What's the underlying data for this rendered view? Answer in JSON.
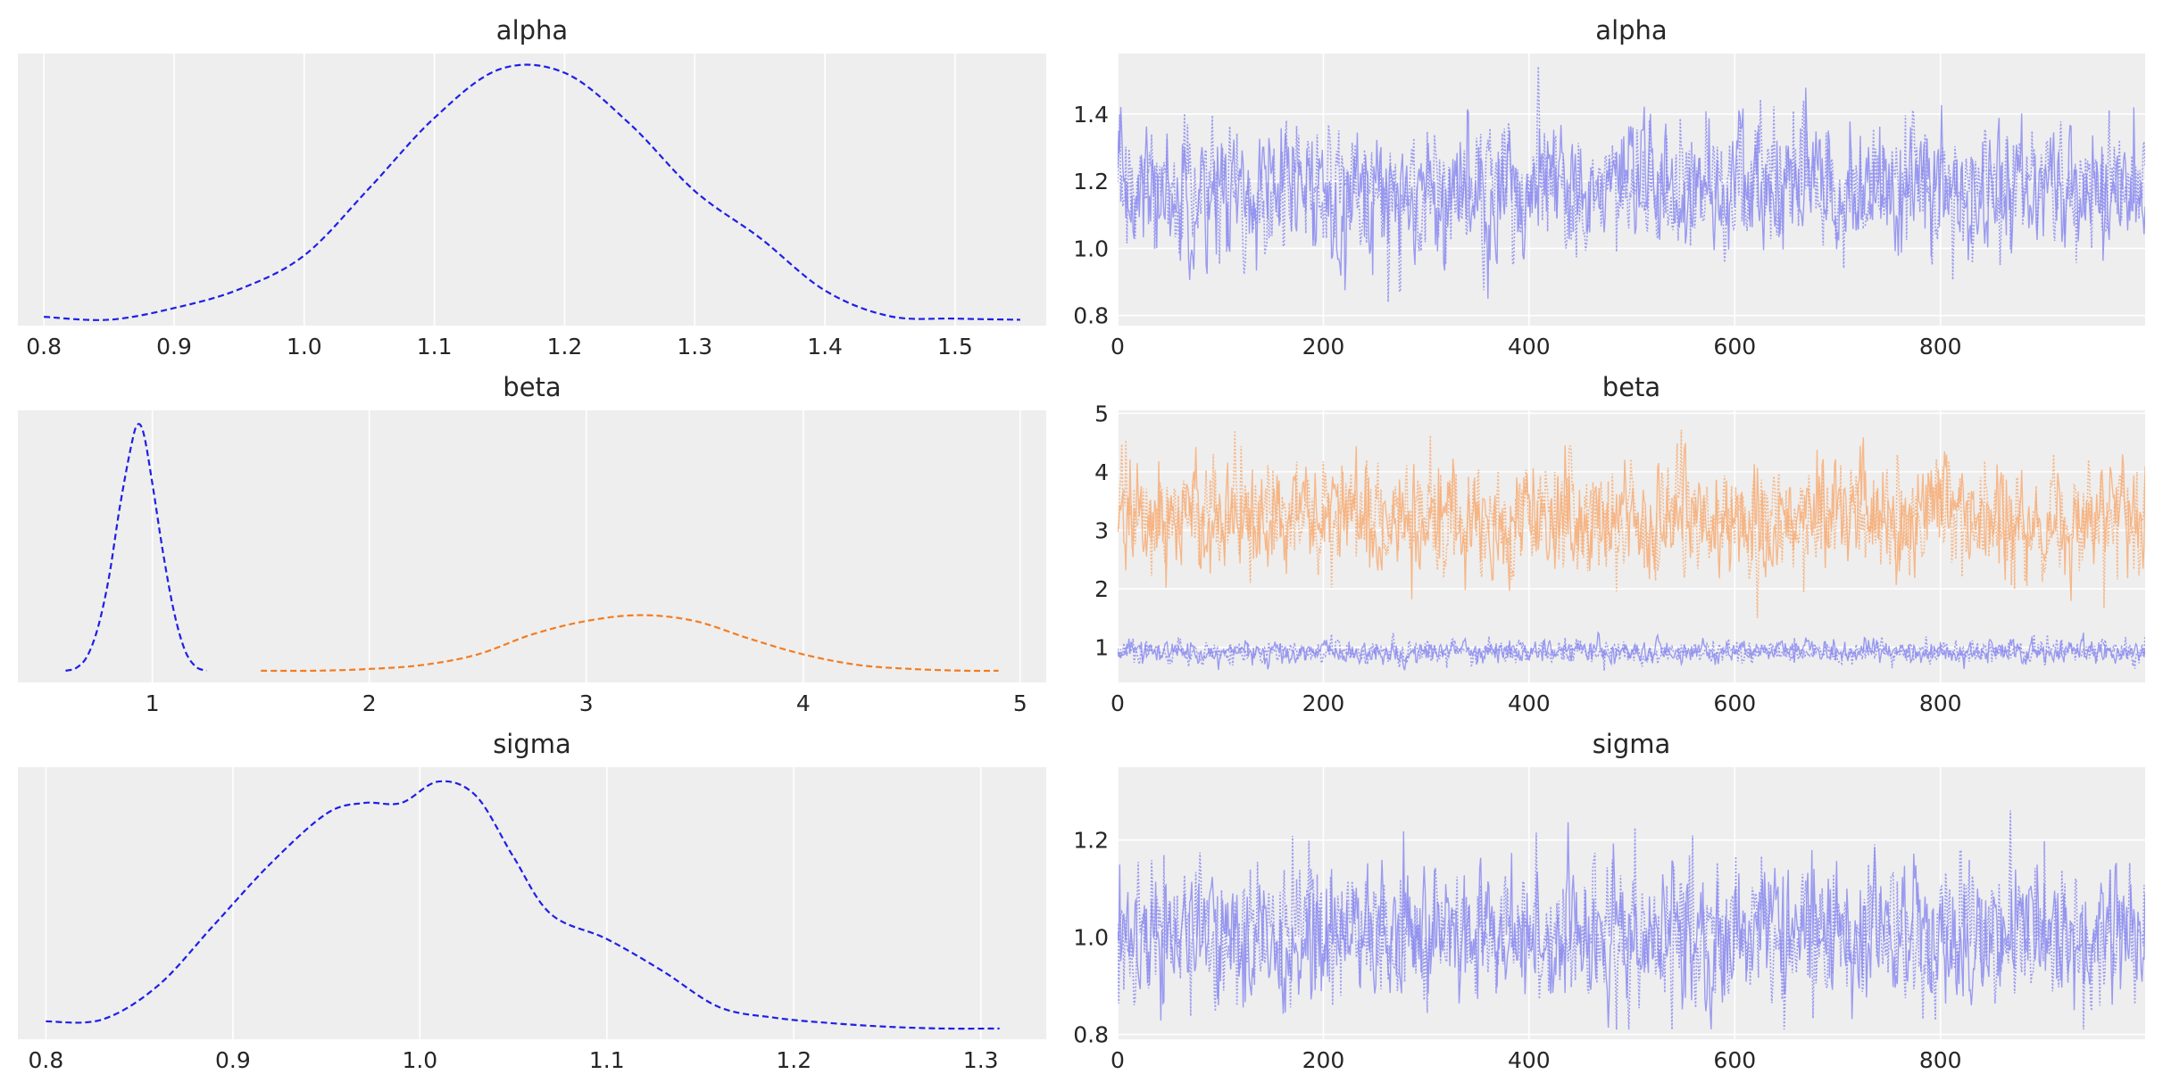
{
  "colors": {
    "background": "#ffffff",
    "panel": "#eeeeee",
    "grid": "#ffffff",
    "text": "#262626",
    "series_blue": "#1f1fe6",
    "series_orange": "#f57c1f",
    "trace_blue": "#8c8cf0",
    "trace_orange": "#f7ae78"
  },
  "chart_data": [
    {
      "type": "line",
      "title": "alpha",
      "panel": "kde",
      "xlim": [
        0.78,
        1.57
      ],
      "xticks": [
        0.8,
        0.9,
        1.0,
        1.1,
        1.2,
        1.3,
        1.4,
        1.5
      ],
      "xtick_labels": [
        "0.8",
        "0.9",
        "1.0",
        "1.1",
        "1.2",
        "1.3",
        "1.4",
        "1.5"
      ],
      "ylim": [
        -0.1,
        4.55
      ],
      "yticks": [],
      "grid": true,
      "series": [
        {
          "color": "#1f1fe6",
          "dash": "dashed",
          "x": [
            0.8,
            0.85,
            0.9,
            0.95,
            1.0,
            1.05,
            1.1,
            1.15,
            1.2,
            1.25,
            1.3,
            1.35,
            1.4,
            1.45,
            1.5,
            1.55
          ],
          "y": [
            0.05,
            0.0,
            0.2,
            0.52,
            1.1,
            2.25,
            3.45,
            4.28,
            4.22,
            3.35,
            2.2,
            1.4,
            0.5,
            0.06,
            0.02,
            0.0
          ]
        }
      ]
    },
    {
      "type": "line",
      "title": "alpha",
      "panel": "trace",
      "xlim": [
        0,
        999
      ],
      "xticks": [
        0,
        200,
        400,
        600,
        800
      ],
      "xtick_labels": [
        "0",
        "200",
        "400",
        "600",
        "800"
      ],
      "ylim": [
        0.77,
        1.58
      ],
      "yticks": [
        0.8,
        1.0,
        1.2,
        1.4
      ],
      "ytick_labels": [
        "0.8",
        "1.0",
        "1.2",
        "1.4"
      ],
      "grid": true,
      "n_draws": 1000,
      "series": [
        {
          "color": "#8c8cf0",
          "dash": "solid",
          "mean": 1.17,
          "sd": 0.09,
          "min": 0.81,
          "max": 1.55
        },
        {
          "color": "#8c8cf0",
          "dash": "dotted",
          "mean": 1.17,
          "sd": 0.09,
          "min": 0.81,
          "max": 1.55
        }
      ]
    },
    {
      "type": "line",
      "title": "beta",
      "panel": "kde",
      "xlim": [
        0.38,
        5.12
      ],
      "xticks": [
        1,
        2,
        3,
        4,
        5
      ],
      "xtick_labels": [
        "1",
        "2",
        "3",
        "4",
        "5"
      ],
      "ylim": [
        -0.2,
        4.45
      ],
      "yticks": [],
      "grid": true,
      "series": [
        {
          "color": "#1f1fe6",
          "dash": "dashed",
          "x": [
            0.6,
            0.65,
            0.7,
            0.75,
            0.8,
            0.85,
            0.9,
            0.93,
            0.96,
            1.0,
            1.05,
            1.1,
            1.15,
            1.2,
            1.25
          ],
          "y": [
            0.0,
            0.05,
            0.25,
            0.75,
            1.6,
            2.8,
            3.8,
            4.2,
            4.05,
            3.2,
            2.0,
            1.0,
            0.35,
            0.07,
            0.0
          ]
        },
        {
          "color": "#f57c1f",
          "dash": "dashed",
          "x": [
            1.5,
            1.75,
            2.0,
            2.25,
            2.5,
            2.75,
            3.0,
            3.25,
            3.5,
            3.75,
            4.0,
            4.25,
            4.5,
            4.75,
            4.9
          ],
          "y": [
            0.0,
            0.0,
            0.03,
            0.1,
            0.28,
            0.62,
            0.85,
            0.95,
            0.85,
            0.55,
            0.28,
            0.1,
            0.03,
            0.0,
            0.0
          ]
        }
      ]
    },
    {
      "type": "line",
      "title": "beta",
      "panel": "trace",
      "xlim": [
        0,
        999
      ],
      "xticks": [
        0,
        200,
        400,
        600,
        800
      ],
      "xtick_labels": [
        "0",
        "200",
        "400",
        "600",
        "800"
      ],
      "ylim": [
        0.4,
        5.05
      ],
      "yticks": [
        1,
        2,
        3,
        4,
        5
      ],
      "ytick_labels": [
        "1",
        "2",
        "3",
        "4",
        "5"
      ],
      "grid": true,
      "n_draws": 1000,
      "series": [
        {
          "color": "#f7ae78",
          "dash": "solid",
          "mean": 3.2,
          "sd": 0.45,
          "min": 1.5,
          "max": 4.9
        },
        {
          "color": "#f7ae78",
          "dash": "dotted",
          "mean": 3.2,
          "sd": 0.45,
          "min": 1.5,
          "max": 4.9
        },
        {
          "color": "#8c8cf0",
          "dash": "solid",
          "mean": 0.93,
          "sd": 0.09,
          "min": 0.6,
          "max": 1.25
        },
        {
          "color": "#8c8cf0",
          "dash": "dotted",
          "mean": 0.93,
          "sd": 0.09,
          "min": 0.6,
          "max": 1.25
        }
      ]
    },
    {
      "type": "line",
      "title": "sigma",
      "panel": "kde",
      "xlim": [
        0.785,
        1.335
      ],
      "xticks": [
        0.8,
        0.9,
        1.0,
        1.1,
        1.2,
        1.3
      ],
      "xtick_labels": [
        "0.8",
        "0.9",
        "1.0",
        "1.1",
        "1.2",
        "1.3"
      ],
      "ylim": [
        -0.3,
        7.3
      ],
      "yticks": [],
      "grid": true,
      "series": [
        {
          "color": "#1f1fe6",
          "dash": "dashed",
          "x": [
            0.8,
            0.83,
            0.86,
            0.89,
            0.92,
            0.95,
            0.97,
            0.99,
            1.01,
            1.03,
            1.05,
            1.07,
            1.1,
            1.13,
            1.16,
            1.19,
            1.22,
            1.25,
            1.28,
            1.31
          ],
          "y": [
            0.2,
            0.25,
            1.2,
            2.9,
            4.6,
            6.0,
            6.3,
            6.3,
            6.9,
            6.5,
            4.8,
            3.2,
            2.5,
            1.6,
            0.6,
            0.3,
            0.15,
            0.05,
            0.0,
            0.0
          ]
        }
      ]
    },
    {
      "type": "line",
      "title": "sigma",
      "panel": "trace",
      "xlim": [
        0,
        999
      ],
      "xticks": [
        0,
        200,
        400,
        600,
        800
      ],
      "xtick_labels": [
        "0",
        "200",
        "400",
        "600",
        "800"
      ],
      "ylim": [
        0.79,
        1.35
      ],
      "yticks": [
        0.8,
        1.0,
        1.2
      ],
      "ytick_labels": [
        "0.8",
        "1.0",
        "1.2"
      ],
      "grid": true,
      "n_draws": 1000,
      "series": [
        {
          "color": "#8c8cf0",
          "dash": "solid",
          "mean": 1.0,
          "sd": 0.065,
          "min": 0.81,
          "max": 1.31
        },
        {
          "color": "#8c8cf0",
          "dash": "dotted",
          "mean": 1.0,
          "sd": 0.065,
          "min": 0.81,
          "max": 1.31
        }
      ]
    }
  ]
}
